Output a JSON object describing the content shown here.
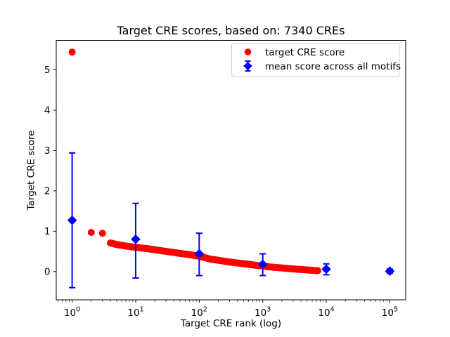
{
  "figure": {
    "background": "#ffffff",
    "text_color": "#000000"
  },
  "chart_data": {
    "type": "scatter",
    "title": "Target CRE scores, based on: 7340 CREs",
    "xlabel": "Target CRE rank (log)",
    "ylabel": "Target CRE score",
    "x_scale": "log",
    "x_tick_base": "10",
    "x_ticks_log10": [
      0,
      1,
      2,
      3,
      4,
      5
    ],
    "y_ticks": [
      0,
      1,
      2,
      3,
      4,
      5
    ],
    "xlim_log10": [
      -0.25,
      5.25
    ],
    "ylim": [
      -0.7,
      5.73
    ],
    "grid": false,
    "legend": {
      "position": "upper right",
      "entries": [
        {
          "label": "target CRE score",
          "marker": "circle",
          "color": "#ff0000"
        },
        {
          "label": "mean score across all motifs",
          "marker": "diamond-errorbar",
          "color": "#0000ff"
        }
      ]
    },
    "series": [
      {
        "name": "target CRE score",
        "type": "scatter",
        "marker": "circle",
        "color": "#ff0000",
        "total_points": 7340,
        "dense_from_rank": 4,
        "points": [
          [
            1,
            5.44
          ],
          [
            2,
            0.97
          ],
          [
            3,
            0.95
          ],
          [
            4,
            0.71
          ],
          [
            5,
            0.67
          ],
          [
            6,
            0.65
          ],
          [
            8,
            0.62
          ],
          [
            10,
            0.6
          ],
          [
            15,
            0.57
          ],
          [
            20,
            0.54
          ],
          [
            30,
            0.5
          ],
          [
            50,
            0.45
          ],
          [
            70,
            0.42
          ],
          [
            100,
            0.38
          ],
          [
            150,
            0.31
          ],
          [
            200,
            0.28
          ],
          [
            300,
            0.235
          ],
          [
            500,
            0.195
          ],
          [
            700,
            0.165
          ],
          [
            1000,
            0.135
          ],
          [
            1500,
            0.105
          ],
          [
            2000,
            0.09
          ],
          [
            3000,
            0.065
          ],
          [
            5000,
            0.04
          ],
          [
            7340,
            0.02
          ]
        ]
      },
      {
        "name": "mean score across all motifs",
        "type": "errorbar",
        "marker": "diamond",
        "color": "#0000ff",
        "points": [
          {
            "rank": 1,
            "mean": 1.27,
            "lo": -0.4,
            "hi": 2.94
          },
          {
            "rank": 10,
            "mean": 0.8,
            "lo": -0.16,
            "hi": 1.69
          },
          {
            "rank": 100,
            "mean": 0.44,
            "lo": -0.1,
            "hi": 0.95
          },
          {
            "rank": 1000,
            "mean": 0.18,
            "lo": -0.1,
            "hi": 0.44
          },
          {
            "rank": 10000,
            "mean": 0.06,
            "lo": -0.08,
            "hi": 0.19
          },
          {
            "rank": 100000,
            "mean": 0.01,
            "lo": -0.04,
            "hi": 0.06
          }
        ]
      }
    ]
  }
}
